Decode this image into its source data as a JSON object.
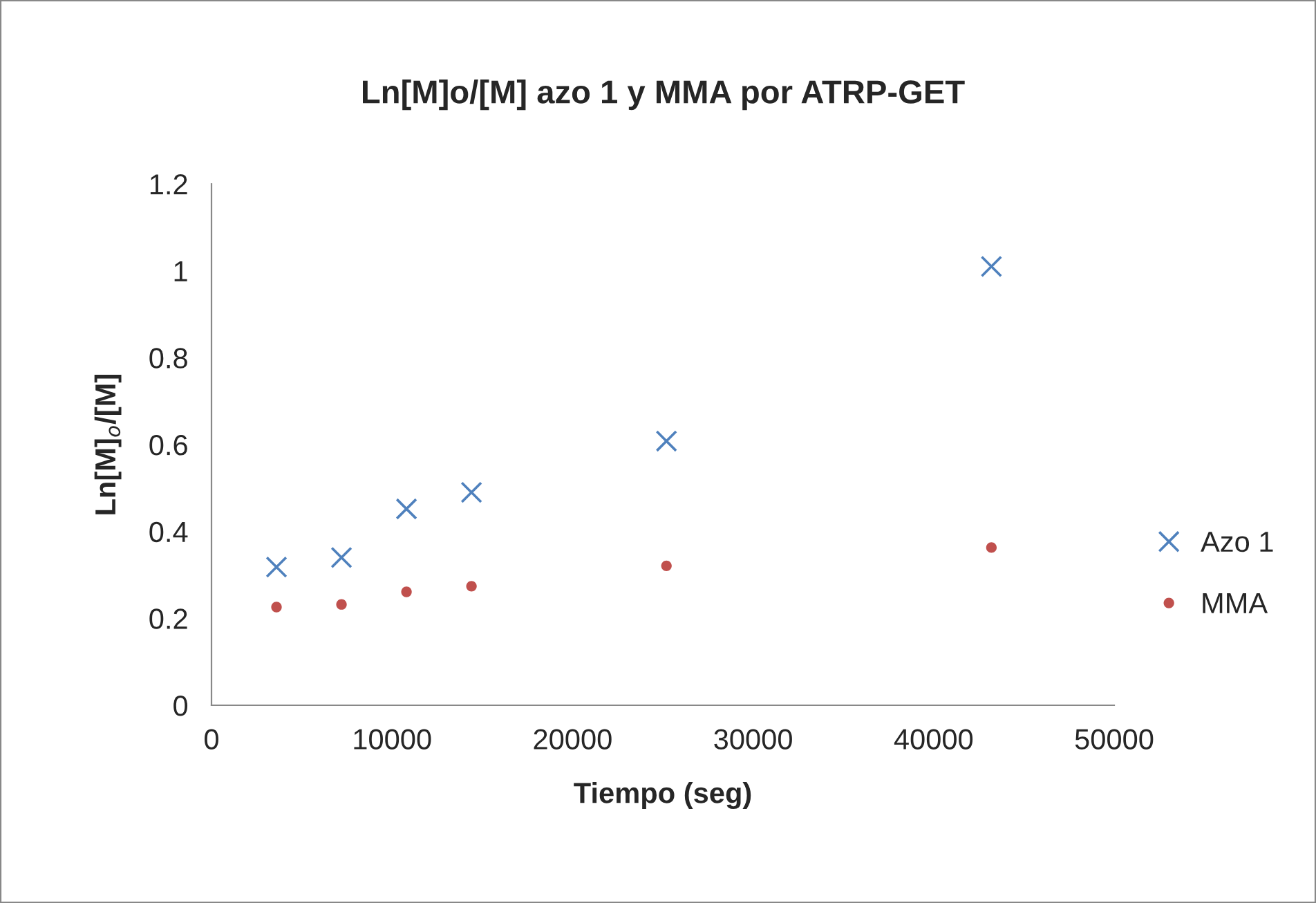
{
  "chart_data": {
    "type": "scatter",
    "title": "Ln[M]o/[M] azo 1 y MMA por ATRP-GET",
    "xlabel": "Tiempo (seg)",
    "ylabel": "Ln[M]$_{o}$/[M]",
    "series": [
      {
        "name": "Azo 1",
        "color": "#4f81bd",
        "marker": "cross",
        "x": [
          3600,
          7200,
          10800,
          14400,
          25200,
          43200
        ],
        "values": [
          0.318,
          0.34,
          0.452,
          0.49,
          0.608,
          1.01
        ]
      },
      {
        "name": "MMA",
        "color": "#c0504d",
        "marker": "circle",
        "x": [
          3600,
          7200,
          10800,
          14400,
          25200,
          43200
        ],
        "values": [
          0.226,
          0.232,
          0.261,
          0.274,
          0.321,
          0.363
        ]
      }
    ],
    "xlim": [
      0,
      50000
    ],
    "xticks": [
      0,
      10000,
      20000,
      30000,
      40000,
      50000
    ],
    "ylim": [
      0,
      1.2
    ],
    "yticks": [
      0,
      0.2,
      0.4,
      0.6,
      0.8,
      1,
      1.2
    ],
    "grid": false,
    "legend": "right"
  }
}
